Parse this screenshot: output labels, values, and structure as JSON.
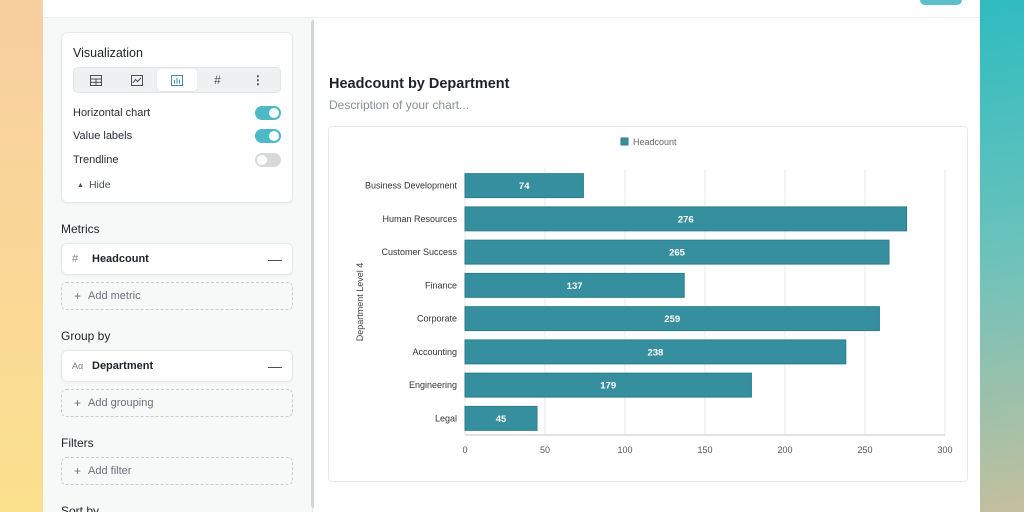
{
  "sidebar": {
    "visualization": {
      "title": "Visualization",
      "types": [
        {
          "name": "table",
          "icon": "▦"
        },
        {
          "name": "line",
          "icon": "⊡"
        },
        {
          "name": "bar",
          "icon": "▥"
        },
        {
          "name": "number",
          "icon": "#"
        },
        {
          "name": "more",
          "icon": "⋮"
        }
      ],
      "active_type": "bar",
      "toggles": [
        {
          "label": "Horizontal chart",
          "on": true
        },
        {
          "label": "Value labels",
          "on": true
        },
        {
          "label": "Trendline",
          "on": false
        }
      ],
      "hide_label": "Hide"
    },
    "metrics": {
      "title": "Metrics",
      "items": [
        {
          "icon": "#",
          "label": "Headcount"
        }
      ],
      "add_label": "Add metric"
    },
    "group_by": {
      "title": "Group by",
      "items": [
        {
          "icon": "Aα",
          "label": "Department"
        }
      ],
      "add_label": "Add grouping"
    },
    "filters": {
      "title": "Filters",
      "add_label": "Add filter"
    },
    "sort_by": {
      "title": "Sort by"
    }
  },
  "main": {
    "title": "Headcount by Department",
    "description_placeholder": "Description of your chart..."
  },
  "colors": {
    "accent": "#4db8c6",
    "bar_fill": "#358f9f",
    "bar_stroke": "#2a7d8c"
  },
  "chart_data": {
    "type": "bar",
    "orientation": "horizontal",
    "categories": [
      "Business Development",
      "Human Resources",
      "Customer Success",
      "Finance",
      "Corporate",
      "Accounting",
      "Engineering",
      "Legal"
    ],
    "series": [
      {
        "name": "Headcount",
        "values": [
          74,
          276,
          265,
          137,
          259,
          238,
          179,
          45
        ]
      }
    ],
    "xlabel": "",
    "ylabel": "Department Level 4",
    "xlim": [
      0,
      300
    ],
    "xticks": [
      0,
      50,
      100,
      150,
      200,
      250,
      300
    ],
    "grid": true,
    "legend": "top-center",
    "value_labels": true
  }
}
